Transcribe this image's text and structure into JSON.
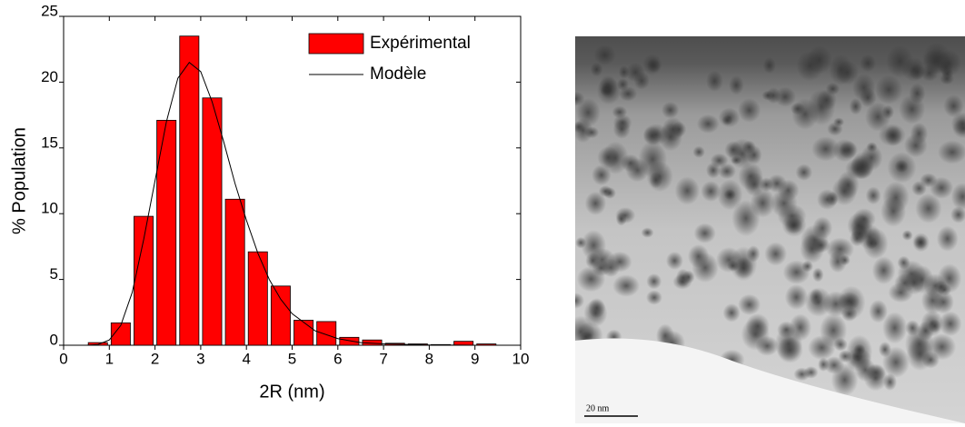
{
  "chart_data": {
    "type": "histogram",
    "xlabel": "2R (nm)",
    "ylabel": "% Population",
    "bins": [
      0.5,
      1.0,
      1.5,
      2.0,
      2.5,
      3.0,
      3.5,
      4.0,
      4.5,
      5.0,
      5.5,
      6.0,
      6.5,
      7.0,
      7.5,
      8.0,
      8.5,
      9.0,
      9.5
    ],
    "series": [
      {
        "name": "Expérimental",
        "type": "histogram",
        "color": "#ff0000",
        "values": [
          0.2,
          1.7,
          9.8,
          17.1,
          23.5,
          18.8,
          11.1,
          7.1,
          4.5,
          1.9,
          1.8,
          0.6,
          0.4,
          0.15,
          0.1,
          0.05,
          0.3,
          0.1
        ]
      },
      {
        "name": "Modèle",
        "type": "line",
        "color": "#000000",
        "x": [
          0.5,
          0.75,
          1.0,
          1.25,
          1.5,
          1.75,
          2.0,
          2.25,
          2.5,
          2.75,
          3.0,
          3.25,
          3.5,
          3.75,
          4.0,
          4.25,
          4.5,
          4.75,
          5.0,
          5.5,
          6.0,
          6.5,
          7.0,
          8.0,
          9.0,
          10.0
        ],
        "values": [
          0,
          0.05,
          0.4,
          1.5,
          4,
          8,
          12.5,
          17,
          20.3,
          21.5,
          20.8,
          18.5,
          15.5,
          12.3,
          9.5,
          7.0,
          5.0,
          3.5,
          2.4,
          1.1,
          0.5,
          0.2,
          0.1,
          0.02,
          0,
          0
        ]
      }
    ],
    "xlim": [
      0,
      10
    ],
    "xticks": [
      0,
      1,
      2,
      3,
      4,
      5,
      6,
      7,
      8,
      9,
      10
    ],
    "ylim": [
      0,
      25
    ],
    "yticks": [
      0,
      5,
      10,
      15,
      20,
      25
    ],
    "legend": "upper right"
  },
  "image": {
    "scale_label": "20 nm"
  }
}
